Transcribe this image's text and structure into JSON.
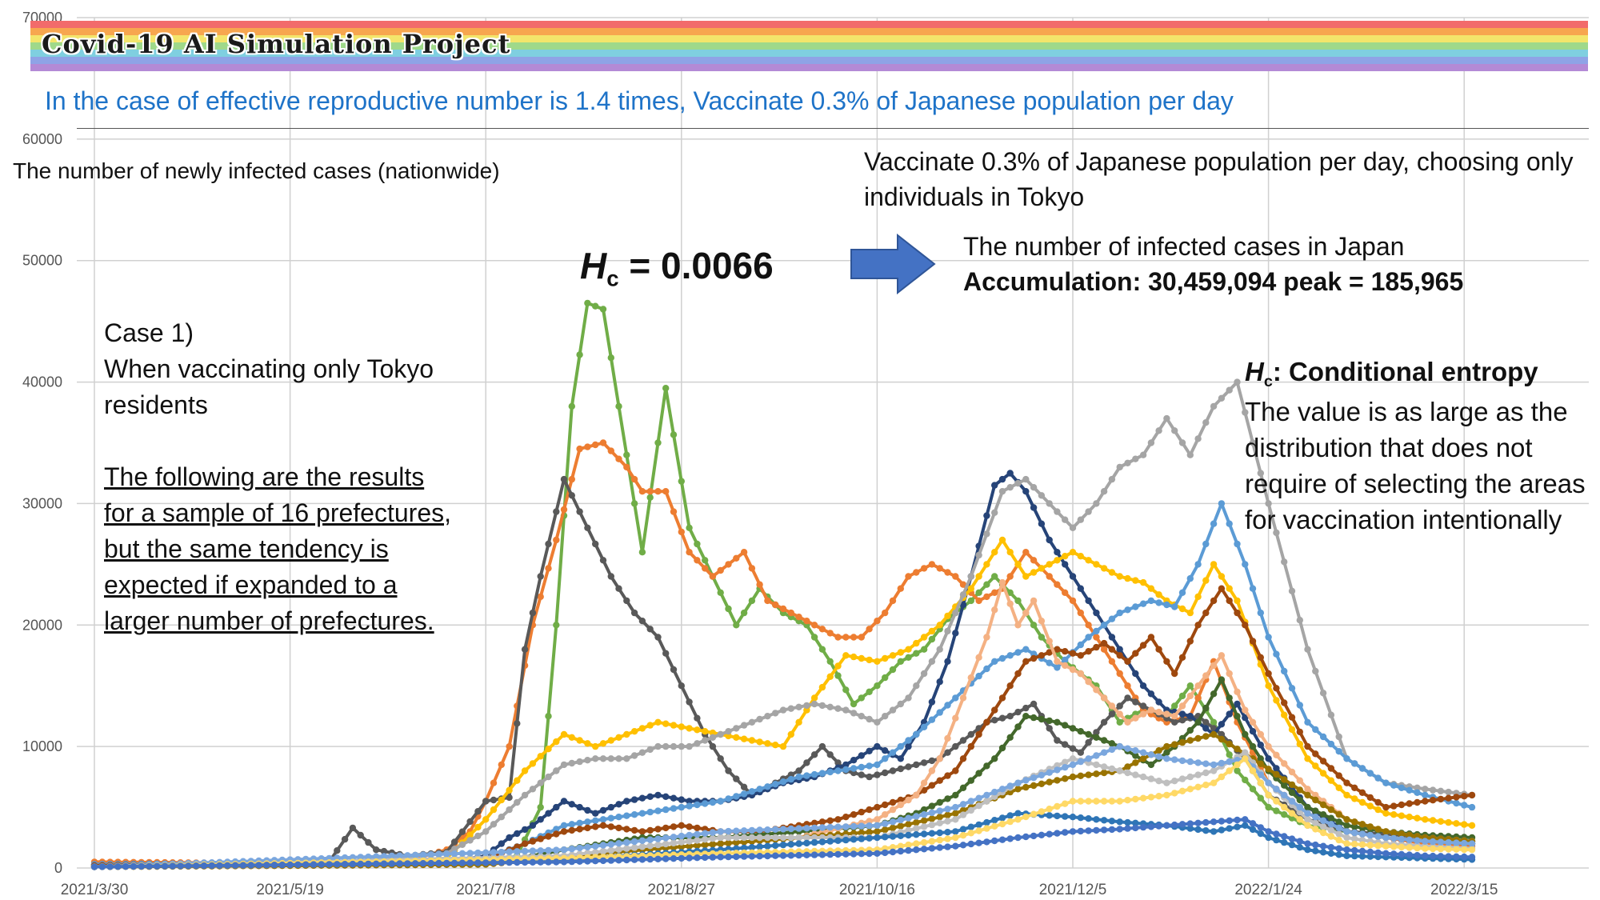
{
  "header": {
    "banner_title": "Covid-19 AI Simulation Project",
    "banner_colors": [
      "#f26b6b",
      "#f7a64f",
      "#f3e56b",
      "#9fd98a",
      "#7fcfe0",
      "#8fa3e6",
      "#b48ad6"
    ],
    "subtitle": "In the case of effective reproductive number is 1.4 times, Vaccinate 0.3% of Japanese population per day"
  },
  "annotations": {
    "ylabel": "The number of newly infected cases (nationwide)",
    "right_note": "Vaccinate 0.3% of Japanese population per day, choosing only individuals in Tokyo",
    "hc_value_letter": "H",
    "hc_value_sub": "c",
    "hc_value_rest": " = 0.0066",
    "japan_line1": "The number of infected cases in Japan",
    "japan_line2": "Accumulation: 30,459,094 peak = 185,965",
    "case_lines": [
      "Case 1)",
      "When vaccinating only Tokyo residents"
    ],
    "underlined_lines": [
      "The following are the results",
      "for a sample of 16 prefectures,",
      "but the same tendency is",
      "expected if expanded to a",
      "larger number of prefectures."
    ],
    "hc_def_letter": "H",
    "hc_def_sub": "c",
    "hc_def_rest": ": Conditional entropy",
    "hc_desc": "The value is as large as the distribution that does not require of selecting the areas for vaccination intentionally",
    "arrow_color": "#4472c4"
  },
  "chart_data": {
    "type": "line",
    "xlabel": "",
    "ylabel": "The number of newly infected cases (nationwide)",
    "ylim": [
      0,
      70000
    ],
    "yticks": [
      0,
      10000,
      20000,
      30000,
      40000,
      50000,
      60000,
      70000
    ],
    "x_ticks": [
      "2021/3/30",
      "2021/5/19",
      "2021/7/8",
      "2021/8/27",
      "2021/10/16",
      "2021/12/5",
      "2022/1/24",
      "2022/3/15"
    ],
    "x_days": [
      0,
      50,
      100,
      150,
      200,
      250,
      300,
      350
    ],
    "xlim": [
      0,
      352
    ],
    "grid": true,
    "marker": "dot",
    "series": [
      {
        "color": "#70ad47",
        "x": [
          0,
          60,
          100,
          108,
          114,
          118,
          122,
          126,
          130,
          134,
          140,
          146,
          152,
          158,
          164,
          170,
          176,
          182,
          188,
          194,
          200,
          206,
          212,
          218,
          224,
          230,
          236,
          242,
          248,
          256,
          262,
          268,
          274,
          280,
          286,
          292,
          300,
          310,
          320,
          330,
          340,
          352
        ],
        "values": [
          200,
          300,
          300,
          1000,
          5000,
          20000,
          38000,
          46500,
          46000,
          38000,
          26000,
          39500,
          28000,
          24000,
          20000,
          23000,
          21000,
          20000,
          17000,
          13500,
          15000,
          17000,
          18000,
          20500,
          22000,
          24000,
          22000,
          19000,
          17000,
          15000,
          12000,
          13000,
          12500,
          15000,
          12000,
          8000,
          5000,
          3500,
          3000,
          2500,
          2200,
          2000
        ]
      },
      {
        "color": "#ed7d31",
        "x": [
          0,
          40,
          80,
          90,
          96,
          100,
          106,
          112,
          118,
          124,
          130,
          136,
          140,
          146,
          152,
          158,
          166,
          172,
          178,
          184,
          190,
          196,
          202,
          208,
          214,
          220,
          226,
          232,
          238,
          244,
          250,
          256,
          262,
          268,
          274,
          280,
          286,
          292,
          300,
          310,
          320,
          330,
          340,
          352
        ],
        "values": [
          500,
          400,
          600,
          1500,
          3000,
          5500,
          10000,
          20000,
          27000,
          34500,
          35000,
          33000,
          31000,
          31000,
          26000,
          24000,
          26000,
          22000,
          21000,
          20000,
          19000,
          19000,
          21000,
          24000,
          25000,
          24000,
          22000,
          23000,
          26000,
          24000,
          22000,
          19000,
          16000,
          13000,
          12000,
          12500,
          17000,
          12000,
          7000,
          4500,
          3000,
          2500,
          2000,
          1800
        ]
      },
      {
        "color": "#595959",
        "x": [
          0,
          50,
          60,
          66,
          72,
          80,
          90,
          100,
          106,
          110,
          114,
          120,
          126,
          132,
          138,
          144,
          150,
          156,
          162,
          168,
          174,
          180,
          186,
          192,
          198,
          204,
          210,
          216,
          222,
          228,
          234,
          240,
          246,
          252,
          258,
          264,
          270,
          276,
          282,
          288,
          294,
          300,
          310,
          320,
          330,
          340,
          352
        ],
        "values": [
          300,
          400,
          500,
          3300,
          1500,
          1000,
          1300,
          5500,
          5800,
          18000,
          24000,
          32000,
          28000,
          24000,
          21000,
          19000,
          15000,
          11000,
          8000,
          6000,
          7000,
          8000,
          10000,
          8000,
          7500,
          8000,
          8500,
          9000,
          10500,
          12000,
          12500,
          13500,
          10500,
          9500,
          12000,
          14000,
          13000,
          12000,
          12500,
          11000,
          9000,
          6000,
          4000,
          3000,
          2800,
          2500,
          2200
        ]
      },
      {
        "color": "#264478",
        "x": [
          0,
          50,
          90,
          100,
          106,
          112,
          120,
          128,
          136,
          144,
          152,
          160,
          168,
          176,
          184,
          192,
          200,
          206,
          212,
          218,
          224,
          230,
          234,
          238,
          244,
          250,
          256,
          262,
          268,
          274,
          280,
          286,
          292,
          300,
          310,
          320,
          330,
          340,
          352
        ],
        "values": [
          300,
          400,
          500,
          1000,
          2500,
          3500,
          5500,
          4500,
          5500,
          6000,
          5500,
          5500,
          6000,
          7000,
          7500,
          8500,
          10000,
          9000,
          12000,
          17000,
          24000,
          31500,
          32500,
          31000,
          27000,
          24000,
          21000,
          18000,
          15000,
          13000,
          12500,
          11000,
          13500,
          9000,
          5000,
          3000,
          2500,
          2200,
          2000
        ]
      },
      {
        "color": "#ffc000",
        "x": [
          0,
          60,
          90,
          100,
          110,
          120,
          128,
          136,
          144,
          152,
          160,
          168,
          176,
          184,
          192,
          200,
          208,
          216,
          224,
          232,
          238,
          244,
          250,
          256,
          262,
          268,
          274,
          280,
          286,
          292,
          300,
          310,
          320,
          330,
          340,
          352
        ],
        "values": [
          200,
          300,
          800,
          4000,
          8000,
          11000,
          10000,
          11000,
          12000,
          11500,
          11000,
          10500,
          10000,
          14000,
          17500,
          17000,
          18000,
          20000,
          23000,
          27000,
          24000,
          25000,
          26000,
          25000,
          24000,
          23500,
          22000,
          21000,
          25000,
          22000,
          15000,
          9000,
          6000,
          4500,
          4000,
          3500
        ]
      },
      {
        "color": "#a5a5a5",
        "x": [
          0,
          60,
          90,
          100,
          110,
          120,
          128,
          136,
          144,
          152,
          160,
          168,
          176,
          184,
          192,
          200,
          208,
          216,
          224,
          232,
          238,
          244,
          250,
          256,
          262,
          268,
          274,
          280,
          286,
          292,
          300,
          310,
          320,
          330,
          340,
          352
        ],
        "values": [
          300,
          400,
          1200,
          3000,
          6000,
          8500,
          9000,
          9000,
          10000,
          10000,
          11000,
          12000,
          13000,
          13500,
          13000,
          12000,
          14000,
          18000,
          24000,
          31000,
          32000,
          30000,
          28000,
          30000,
          33000,
          34000,
          37000,
          34000,
          38000,
          40000,
          30000,
          18000,
          9000,
          7000,
          6500,
          6000
        ]
      },
      {
        "color": "#5b9bd5",
        "x": [
          0,
          60,
          100,
          110,
          120,
          130,
          140,
          150,
          160,
          170,
          180,
          190,
          200,
          210,
          220,
          230,
          238,
          246,
          254,
          262,
          270,
          276,
          282,
          288,
          294,
          300,
          310,
          320,
          330,
          340,
          352
        ],
        "values": [
          300,
          400,
          800,
          2000,
          3500,
          4000,
          4500,
          5000,
          5500,
          6500,
          7500,
          8000,
          8500,
          11000,
          14000,
          17000,
          18000,
          16500,
          19000,
          21000,
          22000,
          21500,
          25000,
          30000,
          25000,
          19000,
          12000,
          9000,
          7000,
          6000,
          5000
        ]
      },
      {
        "color": "#9e480e",
        "x": [
          0,
          100,
          110,
          120,
          130,
          140,
          150,
          160,
          170,
          180,
          190,
          200,
          210,
          220,
          230,
          238,
          246,
          252,
          258,
          264,
          270,
          276,
          282,
          288,
          294,
          300,
          310,
          320,
          330,
          340,
          352
        ],
        "values": [
          200,
          700,
          2000,
          3000,
          3500,
          3000,
          3500,
          3000,
          3000,
          3500,
          4000,
          5000,
          6000,
          8000,
          13000,
          17000,
          18000,
          17500,
          18500,
          17000,
          19000,
          16000,
          20000,
          23000,
          20000,
          16000,
          10000,
          7000,
          5000,
          5500,
          6000
        ]
      },
      {
        "color": "#43682b",
        "x": [
          0,
          100,
          120,
          140,
          160,
          180,
          200,
          210,
          220,
          230,
          238,
          246,
          254,
          262,
          270,
          276,
          282,
          288,
          294,
          300,
          310,
          320,
          330,
          340,
          352
        ],
        "values": [
          100,
          300,
          1500,
          2500,
          2500,
          3000,
          3500,
          4500,
          6000,
          9000,
          12500,
          12000,
          11000,
          10000,
          8500,
          10000,
          12000,
          15500,
          11000,
          8000,
          5000,
          3500,
          3000,
          2700,
          2500
        ]
      },
      {
        "color": "#f4b183",
        "x": [
          0,
          100,
          140,
          180,
          200,
          210,
          216,
          222,
          228,
          232,
          236,
          240,
          246,
          252,
          258,
          264,
          270,
          276,
          282,
          288,
          294,
          300,
          310,
          320,
          330,
          340,
          352
        ],
        "values": [
          100,
          300,
          1500,
          2500,
          4000,
          6000,
          9000,
          14000,
          19000,
          23500,
          20000,
          22000,
          17000,
          16000,
          14000,
          12000,
          13000,
          12500,
          15000,
          17500,
          13000,
          10000,
          6500,
          4000,
          3000,
          2500,
          2200
        ]
      },
      {
        "color": "#997300",
        "x": [
          0,
          100,
          140,
          180,
          200,
          220,
          236,
          250,
          262,
          274,
          286,
          296,
          310,
          320,
          330,
          340,
          352
        ],
        "values": [
          100,
          300,
          1500,
          2500,
          3000,
          4500,
          6500,
          7500,
          8000,
          10000,
          11000,
          9000,
          6000,
          4000,
          3000,
          2500,
          2200
        ]
      },
      {
        "color": "#bfbfbf",
        "x": [
          0,
          120,
          160,
          200,
          220,
          236,
          250,
          262,
          274,
          286,
          294,
          300,
          310,
          320,
          330,
          340,
          352
        ],
        "values": [
          100,
          1000,
          2500,
          2500,
          4000,
          7000,
          9000,
          8000,
          7000,
          8000,
          9500,
          7000,
          4000,
          2500,
          2000,
          1800,
          1600
        ]
      },
      {
        "color": "#7ba7de",
        "x": [
          0,
          120,
          160,
          200,
          220,
          236,
          250,
          262,
          274,
          286,
          294,
          300,
          310,
          320,
          330,
          340,
          352
        ],
        "values": [
          100,
          1500,
          3000,
          3500,
          5000,
          7000,
          8500,
          10000,
          9000,
          8500,
          9000,
          7000,
          4500,
          3000,
          2500,
          2200,
          2000
        ]
      },
      {
        "color": "#2e75b6",
        "x": [
          0,
          120,
          160,
          200,
          220,
          236,
          250,
          262,
          274,
          286,
          294,
          300,
          310,
          320,
          330,
          340,
          352
        ],
        "values": [
          100,
          700,
          1500,
          2500,
          3000,
          4500,
          4200,
          3800,
          3500,
          3000,
          3500,
          2500,
          1500,
          1000,
          900,
          800,
          700
        ]
      },
      {
        "color": "#ffd966",
        "x": [
          0,
          120,
          160,
          200,
          220,
          236,
          250,
          262,
          274,
          286,
          294,
          300,
          310,
          320,
          330,
          340,
          352
        ],
        "values": [
          100,
          800,
          1200,
          1500,
          2500,
          4000,
          5500,
          5500,
          6000,
          7000,
          9000,
          6000,
          3500,
          2000,
          1800,
          1600,
          1500
        ]
      },
      {
        "color": "#4472c4",
        "x": [
          0,
          120,
          160,
          200,
          220,
          236,
          250,
          262,
          274,
          286,
          294,
          300,
          310,
          320,
          330,
          340,
          352
        ],
        "values": [
          100,
          500,
          900,
          1200,
          1800,
          2500,
          3000,
          3200,
          3500,
          3800,
          4000,
          3000,
          2000,
          1500,
          1200,
          1000,
          900
        ]
      }
    ]
  }
}
